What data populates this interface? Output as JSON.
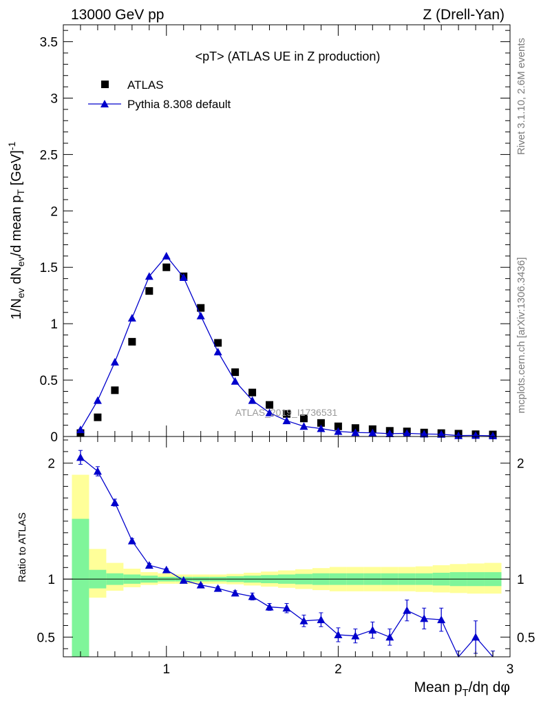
{
  "header": {
    "left": "13000 GeV pp",
    "right": "Z (Drell-Yan)"
  },
  "side_text": {
    "rivet": "Rivet 3.1.10,  2.6M events",
    "source": "mcplots.cern.ch [arXiv:1306.3436]"
  },
  "watermark": "ATLAS_2019_I1736531",
  "colors": {
    "data": "#000000",
    "mc": "#0000cc",
    "band_stat": "#7ff59a",
    "band_total": "#ffff99"
  },
  "chart_data": [
    {
      "type": "scatter",
      "title": "<pT> (ATLAS UE in Z production)",
      "ylabel": "1/N_ev dN_ev/d mean p_T [GeV]^-1",
      "xlim": [
        0.4,
        3.0
      ],
      "ylim": [
        0,
        3.65
      ],
      "yticks": [
        0,
        0.5,
        1,
        1.5,
        2,
        2.5,
        3,
        3.5
      ],
      "legend_position": "top-left",
      "series": [
        {
          "name": "ATLAS",
          "marker": "square",
          "x": [
            0.5,
            0.6,
            0.7,
            0.8,
            0.9,
            1.0,
            1.1,
            1.2,
            1.3,
            1.4,
            1.5,
            1.6,
            1.7,
            1.8,
            1.9,
            2.0,
            2.1,
            2.2,
            2.3,
            2.4,
            2.5,
            2.6,
            2.7,
            2.8,
            2.9
          ],
          "y": [
            0.03,
            0.17,
            0.41,
            0.84,
            1.29,
            1.5,
            1.42,
            1.14,
            0.83,
            0.57,
            0.39,
            0.28,
            0.2,
            0.16,
            0.12,
            0.09,
            0.075,
            0.065,
            0.05,
            0.045,
            0.035,
            0.03,
            0.025,
            0.02,
            0.018
          ]
        },
        {
          "name": "Pythia 8.308 default",
          "marker": "triangle",
          "x": [
            0.5,
            0.6,
            0.7,
            0.8,
            0.9,
            1.0,
            1.1,
            1.2,
            1.3,
            1.4,
            1.5,
            1.6,
            1.7,
            1.8,
            1.9,
            2.0,
            2.1,
            2.2,
            2.3,
            2.4,
            2.5,
            2.6,
            2.7,
            2.8,
            2.9
          ],
          "y": [
            0.06,
            0.32,
            0.66,
            1.05,
            1.42,
            1.6,
            1.41,
            1.07,
            0.75,
            0.49,
            0.32,
            0.21,
            0.14,
            0.09,
            0.07,
            0.045,
            0.035,
            0.033,
            0.025,
            0.028,
            0.022,
            0.02,
            0.008,
            0.01,
            0.006
          ]
        }
      ]
    },
    {
      "type": "line",
      "xlabel": "Mean p_T/dη dφ",
      "ylabel": "Ratio to ATLAS",
      "xlim": [
        0.4,
        3.0
      ],
      "ylim": [
        0.33,
        2.23
      ],
      "yticks": [
        0.5,
        1,
        2
      ],
      "xticks": [
        1,
        2,
        3
      ],
      "bands": {
        "x_edges": [
          0.45,
          0.55,
          0.65,
          0.75,
          0.85,
          0.95,
          1.05,
          1.15,
          1.25,
          1.35,
          1.45,
          1.55,
          1.65,
          1.75,
          1.85,
          1.95,
          2.05,
          2.15,
          2.25,
          2.35,
          2.45,
          2.55,
          2.65,
          2.75,
          2.85,
          2.95
        ],
        "stat_lo": [
          0.0,
          0.92,
          0.95,
          0.96,
          0.97,
          0.98,
          0.98,
          0.98,
          0.98,
          0.975,
          0.97,
          0.965,
          0.96,
          0.955,
          0.95,
          0.95,
          0.95,
          0.95,
          0.95,
          0.95,
          0.95,
          0.945,
          0.94,
          0.94,
          0.94
        ],
        "stat_hi": [
          1.52,
          1.08,
          1.05,
          1.04,
          1.03,
          1.02,
          1.02,
          1.02,
          1.02,
          1.025,
          1.03,
          1.035,
          1.04,
          1.045,
          1.05,
          1.05,
          1.05,
          1.05,
          1.05,
          1.05,
          1.05,
          1.055,
          1.06,
          1.06,
          1.06
        ],
        "total_lo": [
          0.0,
          0.84,
          0.9,
          0.93,
          0.95,
          0.96,
          0.96,
          0.96,
          0.96,
          0.955,
          0.945,
          0.935,
          0.925,
          0.915,
          0.905,
          0.895,
          0.895,
          0.895,
          0.895,
          0.895,
          0.89,
          0.885,
          0.88,
          0.875,
          0.875
        ],
        "total_hi": [
          1.9,
          1.26,
          1.14,
          1.09,
          1.06,
          1.05,
          1.04,
          1.04,
          1.04,
          1.045,
          1.055,
          1.065,
          1.075,
          1.085,
          1.095,
          1.105,
          1.105,
          1.105,
          1.105,
          1.105,
          1.11,
          1.12,
          1.13,
          1.135,
          1.14
        ]
      },
      "series": [
        {
          "name": "Pythia 8.308 default",
          "x": [
            0.5,
            0.6,
            0.7,
            0.8,
            0.9,
            1.0,
            1.1,
            1.2,
            1.3,
            1.4,
            1.5,
            1.6,
            1.7,
            1.8,
            1.9,
            2.0,
            2.1,
            2.2,
            2.3,
            2.4,
            2.5,
            2.6,
            2.7,
            2.8,
            2.9
          ],
          "y": [
            2.05,
            1.93,
            1.66,
            1.33,
            1.12,
            1.08,
            0.99,
            0.95,
            0.92,
            0.88,
            0.85,
            0.76,
            0.75,
            0.64,
            0.65,
            0.52,
            0.51,
            0.56,
            0.5,
            0.73,
            0.66,
            0.65,
            0.28,
            0.5,
            0.28
          ],
          "err": [
            0.06,
            0.04,
            0.03,
            0.02,
            0.015,
            0.01,
            0.01,
            0.01,
            0.015,
            0.02,
            0.03,
            0.03,
            0.04,
            0.05,
            0.06,
            0.06,
            0.06,
            0.07,
            0.07,
            0.09,
            0.09,
            0.1,
            0.1,
            0.14,
            0.1
          ]
        }
      ]
    }
  ]
}
